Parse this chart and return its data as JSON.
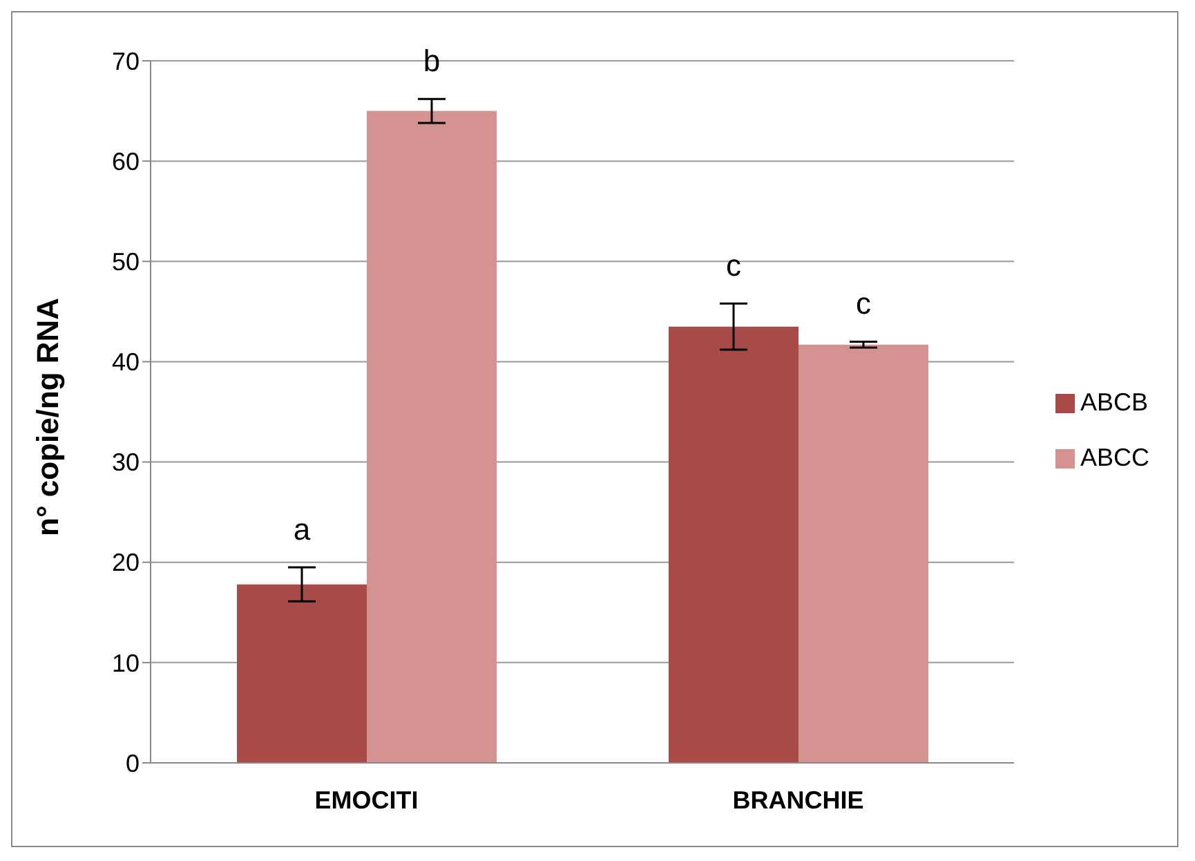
{
  "chart_data": {
    "type": "bar",
    "ylabel": "n° copie/ng RNA",
    "categories": [
      "EMOCITI",
      "BRANCHIE"
    ],
    "series": [
      {
        "name": "ABCB",
        "color": "#a84a47",
        "values": [
          17.8,
          43.5
        ],
        "errors": [
          1.7,
          2.3
        ]
      },
      {
        "name": "ABCC",
        "color": "#d49391",
        "values": [
          65,
          41.7
        ],
        "errors": [
          1.2,
          0.3
        ]
      }
    ],
    "ylim": [
      0,
      70
    ],
    "yticks": [
      0,
      10,
      20,
      30,
      40,
      50,
      60,
      70
    ],
    "grid": "y",
    "legend": "right",
    "annotations": [
      "a",
      "c",
      "b",
      "c"
    ]
  }
}
